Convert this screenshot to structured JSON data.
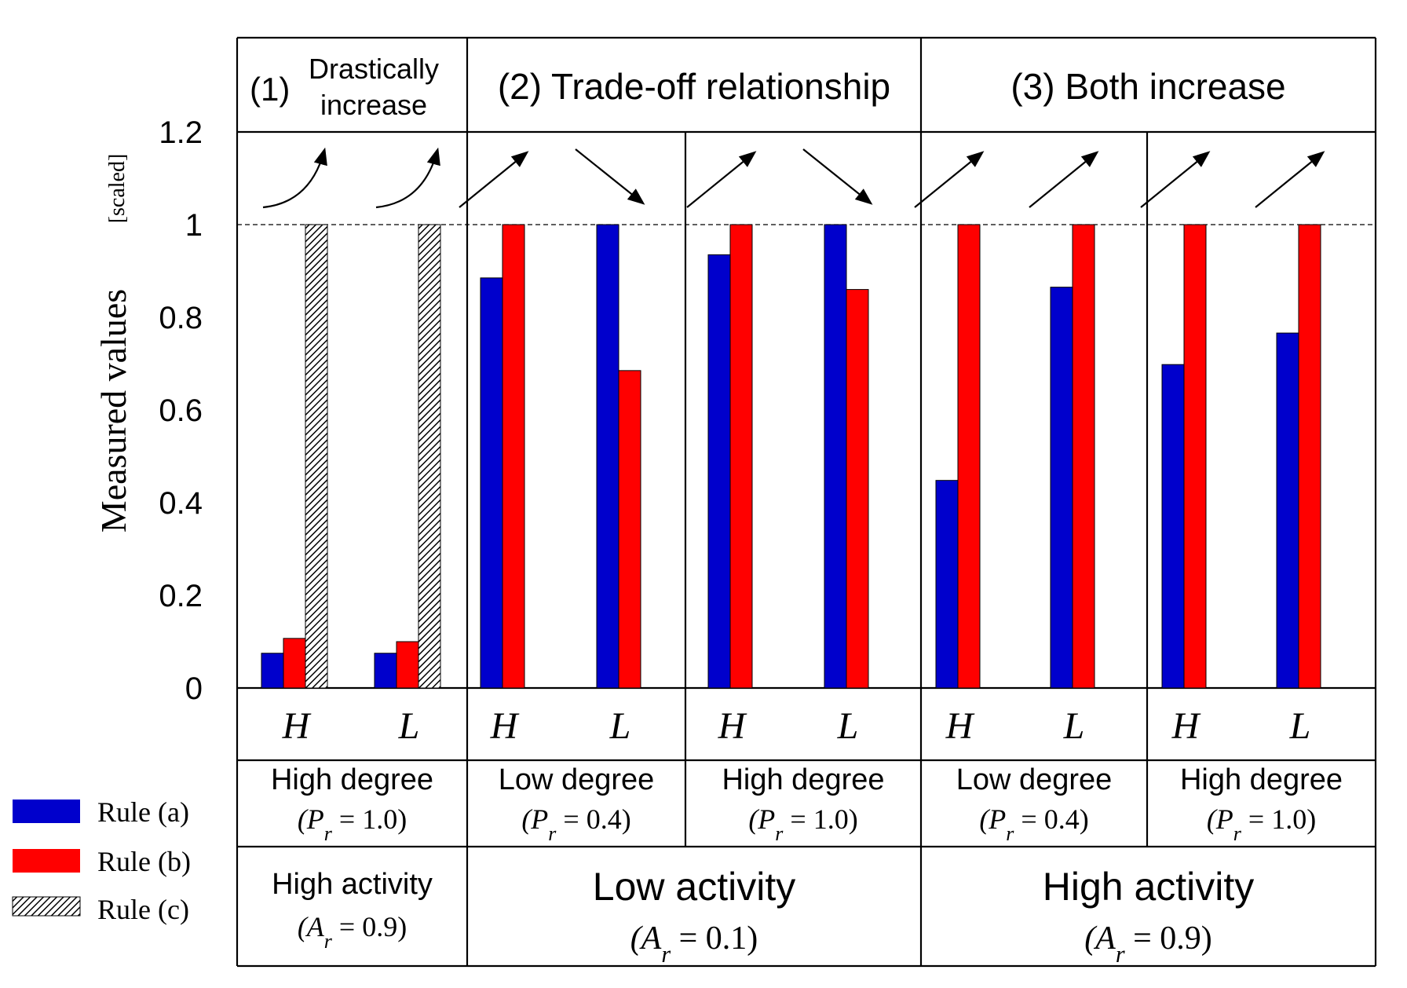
{
  "chart_data": {
    "type": "bar",
    "ylabel": "Measured values",
    "ylabel_unit": "[scaled]",
    "ylim": [
      0,
      1.2
    ],
    "yticks": [
      "0",
      "0.2",
      "0.4",
      "0.6",
      "0.8",
      "1",
      "1.2"
    ],
    "reference_line": 1,
    "sections": [
      {
        "label": "(1) ",
        "label_lines": [
          "Drastically",
          "increase"
        ]
      },
      {
        "label": "(2) Trade-off relationship"
      },
      {
        "label": "(3) Both increase"
      }
    ],
    "groups": [
      {
        "H": {
          "trend": "curve-up",
          "values": [
            0.075,
            0.107,
            1.0
          ]
        },
        "L": {
          "trend": "curve-up",
          "values": [
            0.075,
            0.1,
            1.0
          ]
        },
        "degree": "High degree",
        "degree_param": "(P",
        "degree_sub": "r",
        "degree_value": " = 1.0)"
      },
      {
        "H": {
          "trend": "up",
          "values": [
            0.885,
            1.0
          ]
        },
        "L": {
          "trend": "down",
          "values": [
            1.0,
            0.685
          ]
        },
        "degree": "Low degree",
        "degree_param": "(P",
        "degree_sub": "r",
        "degree_value": " = 0.4)"
      },
      {
        "H": {
          "trend": "up",
          "values": [
            0.935,
            1.0
          ]
        },
        "L": {
          "trend": "down",
          "values": [
            1.0,
            0.86
          ]
        },
        "degree": "High degree",
        "degree_param": "(P",
        "degree_sub": "r",
        "degree_value": " = 1.0)"
      },
      {
        "H": {
          "trend": "up",
          "values": [
            0.448,
            1.0
          ]
        },
        "L": {
          "trend": "up",
          "values": [
            0.865,
            1.0
          ]
        },
        "degree": "Low degree",
        "degree_param": "(P",
        "degree_sub": "r",
        "degree_value": " = 0.4)"
      },
      {
        "H": {
          "trend": "up",
          "values": [
            0.698,
            1.0
          ]
        },
        "L": {
          "trend": "up",
          "values": [
            0.766,
            1.0
          ]
        },
        "degree": "High degree",
        "degree_param": "(P",
        "degree_sub": "r",
        "degree_value": " = 1.0)"
      }
    ],
    "activity": [
      {
        "label": "High activity",
        "param": "(A",
        "sub": "r",
        "value": " = 0.9)"
      },
      {
        "label": "Low activity",
        "param": "(A",
        "sub": "r",
        "value": " = 0.1)"
      },
      {
        "label": "High activity",
        "param": "(A",
        "sub": "r",
        "value": " = 0.9)"
      }
    ],
    "categories": [
      "H",
      "L"
    ],
    "series": [
      {
        "name": "Rule (a)",
        "color": "#0000cc"
      },
      {
        "name": "Rule (b)",
        "color": "#ff0000"
      },
      {
        "name": "Rule (c)",
        "pattern": "hatched"
      }
    ]
  }
}
